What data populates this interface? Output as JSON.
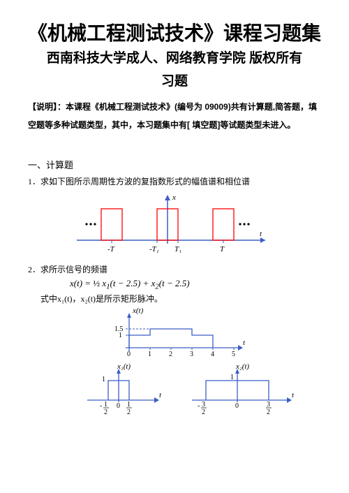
{
  "title_main": "《机械工程测试技术》课程习题集",
  "title_sub1": "西南科技大学成人、网络教育学院 版权所有",
  "title_sub2": "习题",
  "note_line1": "【说明】：本课程《机械工程测试技术》(编号为 09009)共有计算题,简答题，填",
  "note_line2": "空题等多种试题类型，其中，本习题集中有[ 填空题]等试题类型未进入。",
  "section1": "一、计算题",
  "q1": "1．求如下图所示周期性方波的复指数形式的幅值谱和相位谱",
  "q2": "2．求所示信号的频谱",
  "q2_formula_html": "x(t) = <span style='font-style:normal'>½</span> x<sub>1</sub>(t − 2.5) + x<sub>2</sub>(t − 2.5)",
  "q2_tail": "式中x₁(t)，x₂(t)是所示矩形脉冲。",
  "fig1": {
    "axis_x_label": "t",
    "axis_y_label": "x",
    "ticks": [
      "-T",
      "-T₁",
      "T₁",
      "T"
    ],
    "axis_color": "#3b5ec6",
    "rect_color": "#ff0000",
    "tick_color": "#000000",
    "bg": "#ffffff"
  },
  "fig2_top": {
    "yaxis_label": "x(t)",
    "xaxis_label": "t",
    "xticks": [
      "0",
      "1",
      "2",
      "3",
      "4",
      "5"
    ],
    "yticks": [
      "1",
      "1.5"
    ],
    "step_heights": [
      1.0,
      1.5,
      1.5,
      1.0
    ],
    "color": "#3b5ec6"
  },
  "fig2_left": {
    "yaxis_label": "x₁(t)",
    "xaxis_label": "t",
    "xticks_neg": "-½",
    "xticks_zero": "0",
    "xticks_pos": "½",
    "ytick": "1",
    "color": "#3b5ec6"
  },
  "fig2_right": {
    "yaxis_label": "x₂(t)",
    "xaxis_label": "t",
    "xticks_neg": "-³⁄₂",
    "xticks_zero": "0",
    "xticks_pos": "³⁄₂",
    "ytick": "1",
    "color": "#3b5ec6"
  }
}
